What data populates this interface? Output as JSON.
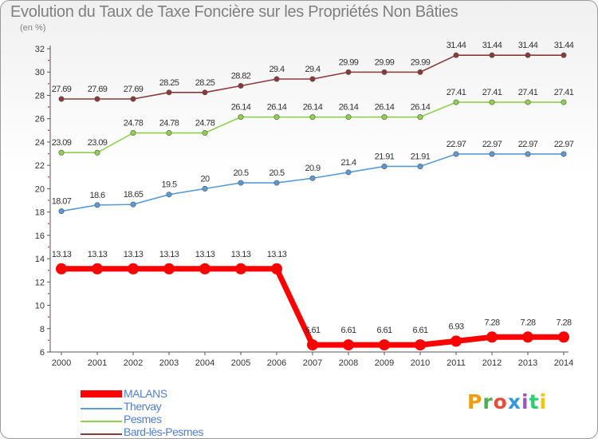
{
  "title": "Evolution du Taux de Taxe Foncière sur les Propriétés Non Bâties",
  "unit_label": "(en %)",
  "logo_text": "Proxiti",
  "logo_colors": [
    "#f39c12",
    "#4caf50",
    "#e74c3c",
    "#3498db",
    "#9b59b6",
    "#2ecc71",
    "#f1c40f"
  ],
  "chart_data": {
    "type": "line",
    "x": [
      "2000",
      "2001",
      "2002",
      "2003",
      "2004",
      "2005",
      "2006",
      "2007",
      "2008",
      "2009",
      "2010",
      "2011",
      "2012",
      "2013",
      "2014"
    ],
    "ylim": [
      6,
      32
    ],
    "yticks": [
      6,
      8,
      10,
      12,
      14,
      16,
      18,
      20,
      22,
      24,
      26,
      28,
      30,
      32
    ],
    "grid": false,
    "legend_position": "bottom-left",
    "series": [
      {
        "name": "MALANS",
        "color": "#ff0000",
        "values": [
          13.13,
          13.13,
          13.13,
          13.13,
          13.13,
          13.13,
          13.13,
          6.61,
          6.61,
          6.61,
          6.61,
          6.93,
          7.28,
          7.28,
          7.28
        ],
        "labels": [
          "13.13",
          "13.13",
          "13.13",
          "13.13",
          "13.13",
          "13.13",
          "13.13",
          "6.61",
          "6.61",
          "6.61",
          "6.61",
          "6.93",
          "7.28",
          "7.28",
          "7.28"
        ]
      },
      {
        "name": "Thervay",
        "color": "#5b9bd5",
        "values": [
          18.07,
          18.6,
          18.65,
          19.5,
          20,
          20.5,
          20.5,
          20.9,
          21.4,
          21.91,
          21.91,
          22.97,
          22.97,
          22.97,
          22.97
        ],
        "labels": [
          "18.07",
          "18.6",
          "18.65",
          "19.5",
          "20",
          "20.5",
          "20.5",
          "20.9",
          "21.4",
          "21.91",
          "21.91",
          "22.97",
          "22.97",
          "22.97",
          "22.97"
        ]
      },
      {
        "name": "Pesmes",
        "color": "#8fd14f",
        "values": [
          23.09,
          23.09,
          24.78,
          24.78,
          24.78,
          26.14,
          26.14,
          26.14,
          26.14,
          26.14,
          26.14,
          27.41,
          27.41,
          27.41,
          27.41
        ],
        "labels": [
          "23.09",
          "23.09",
          "24.78",
          "24.78",
          "24.78",
          "26.14",
          "26.14",
          "26.14",
          "26.14",
          "26.14",
          "26.14",
          "27.41",
          "27.41",
          "27.41",
          "27.41"
        ]
      },
      {
        "name": "Bard-lès-Pesmes",
        "color": "#8b3a3a",
        "values": [
          27.69,
          27.69,
          27.69,
          28.25,
          28.25,
          28.82,
          29.4,
          29.4,
          29.99,
          29.99,
          29.99,
          31.44,
          31.44,
          31.44,
          31.44
        ],
        "labels": [
          "27.69",
          "27.69",
          "27.69",
          "28.25",
          "28.25",
          "28.82",
          "29.4",
          "29.4",
          "29.99",
          "29.99",
          "29.99",
          "31.44",
          "31.44",
          "31.44",
          "31.44"
        ]
      }
    ]
  }
}
